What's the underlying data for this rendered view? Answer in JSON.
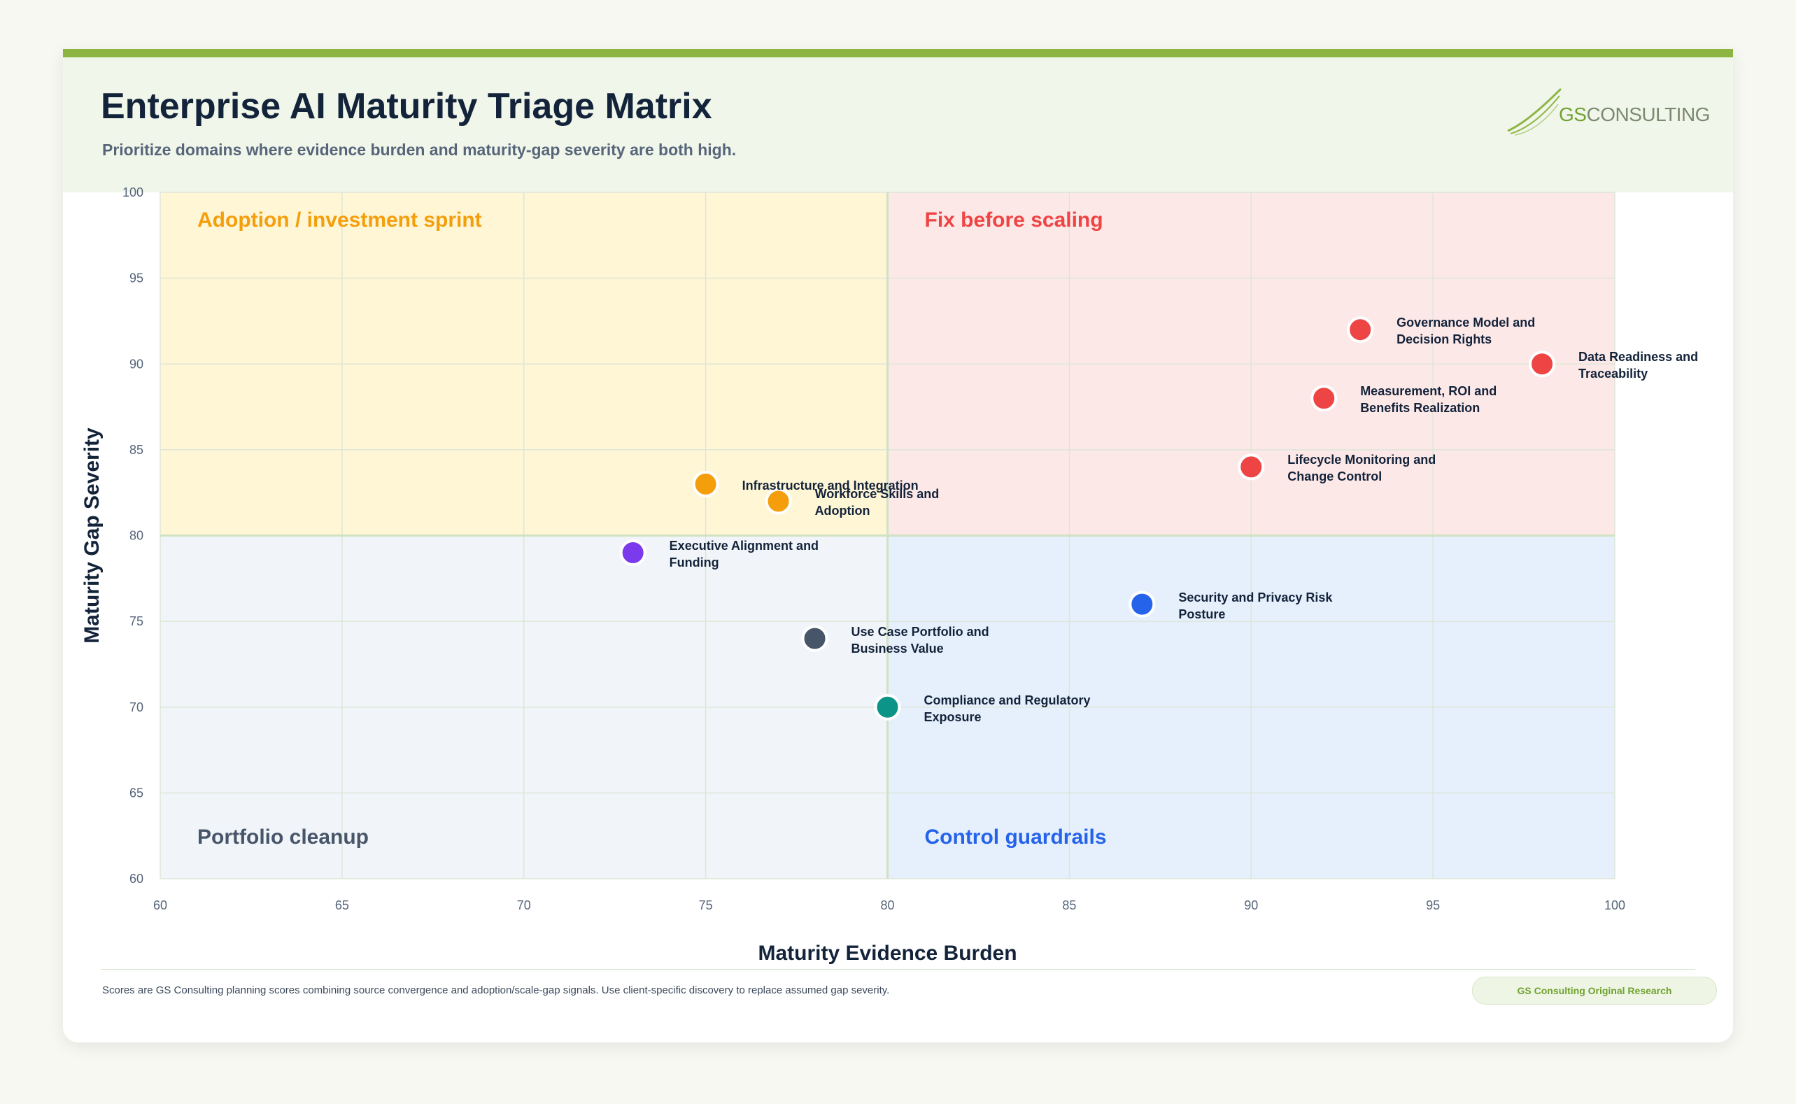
{
  "header": {
    "title": "Enterprise AI Maturity Triage Matrix",
    "subtitle": "Prioritize domains where evidence burden and maturity-gap severity are both high.",
    "logo": {
      "accent": "GS",
      "text": "CONSULTING"
    }
  },
  "chart_data": {
    "type": "scatter",
    "xlabel": "Maturity Evidence Burden",
    "ylabel": "Maturity Gap Severity",
    "xlim": [
      60,
      100
    ],
    "ylim": [
      60,
      100
    ],
    "xticks": [
      60,
      65,
      70,
      75,
      80,
      85,
      90,
      95,
      100
    ],
    "yticks": [
      60,
      65,
      70,
      75,
      80,
      85,
      90,
      95,
      100
    ],
    "grid": true,
    "x_split": 80,
    "y_split": 80,
    "quadrants": {
      "top_left": {
        "label": "Adoption / investment sprint",
        "color": "#f59e0b",
        "fill": "#fff6d6"
      },
      "top_right": {
        "label": "Fix before scaling",
        "color": "#ef4444",
        "fill": "#fde8e8"
      },
      "bottom_left": {
        "label": "Portfolio cleanup",
        "color": "#475569",
        "fill": "#f1f5f9"
      },
      "bottom_right": {
        "label": "Control guardrails",
        "color": "#2563eb",
        "fill": "#e6f0fd"
      }
    },
    "points": [
      {
        "name": "Governance Model and Decision Rights",
        "x": 93,
        "y": 92,
        "color": "#ef4444"
      },
      {
        "name": "Data Readiness and Traceability",
        "x": 98,
        "y": 90,
        "color": "#ef4444"
      },
      {
        "name": "Measurement, ROI and Benefits Realization",
        "x": 92,
        "y": 88,
        "color": "#ef4444"
      },
      {
        "name": "Lifecycle Monitoring and Change Control",
        "x": 90,
        "y": 84,
        "color": "#ef4444"
      },
      {
        "name": "Infrastructure and Integration",
        "x": 75,
        "y": 83,
        "color": "#f59e0b"
      },
      {
        "name": "Workforce Skills and Adoption",
        "x": 77,
        "y": 82,
        "color": "#f59e0b"
      },
      {
        "name": "Executive Alignment and Funding",
        "x": 73,
        "y": 79,
        "color": "#7c3aed"
      },
      {
        "name": "Security and Privacy Risk Posture",
        "x": 87,
        "y": 76,
        "color": "#2563eb"
      },
      {
        "name": "Use Case Portfolio and Business Value",
        "x": 78,
        "y": 74,
        "color": "#475569"
      },
      {
        "name": "Compliance and Regulatory Exposure",
        "x": 80,
        "y": 70,
        "color": "#0d9488"
      }
    ]
  },
  "footer": {
    "note": "Scores are GS Consulting planning scores combining source convergence and adoption/scale-gap signals. Use client-specific discovery to replace assumed gap severity.",
    "badge": "GS Consulting Original Research"
  }
}
